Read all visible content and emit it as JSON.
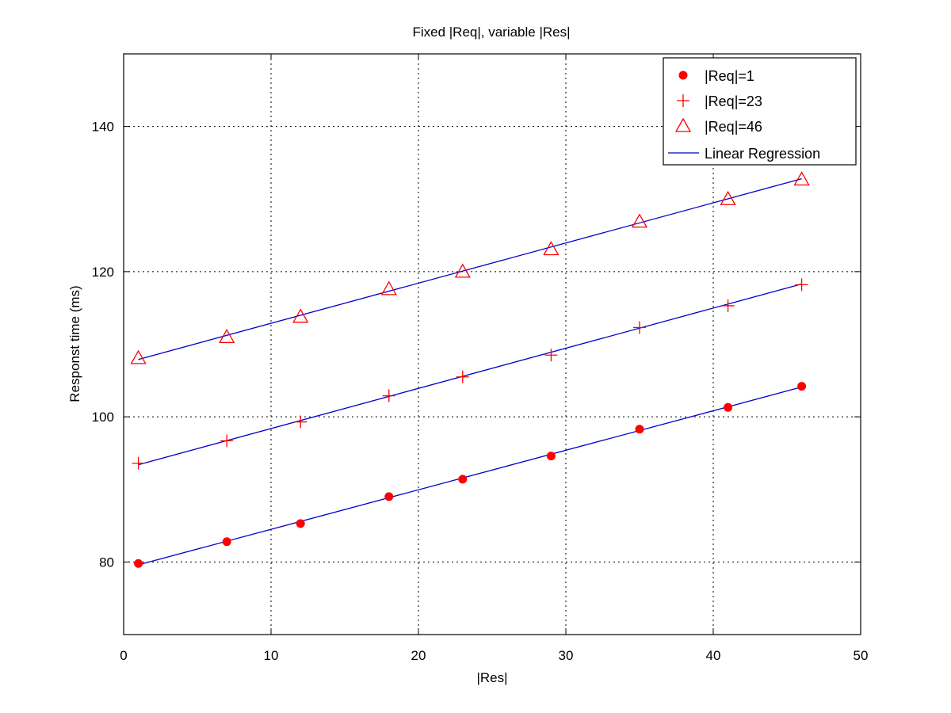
{
  "chart_data": {
    "type": "scatter",
    "title": "Fixed |Req|, variable |Res|",
    "xlabel": "|Res|",
    "ylabel": "Responst time (ms)",
    "xlim": [
      0,
      50
    ],
    "ylim": [
      70,
      150
    ],
    "xticks": [
      0,
      10,
      20,
      30,
      40,
      50
    ],
    "yticks": [
      80,
      100,
      120,
      140
    ],
    "grid": true,
    "legend_position": "top-right",
    "x": [
      1,
      7,
      12,
      18,
      23,
      29,
      35,
      41,
      46
    ],
    "series": [
      {
        "name": "|Req|=1",
        "marker": "filled-circle",
        "color": "#ff0000",
        "values": [
          79.8,
          82.8,
          85.3,
          89.0,
          91.4,
          94.6,
          98.3,
          101.3,
          104.2
        ]
      },
      {
        "name": "|Req|=23",
        "marker": "plus",
        "color": "#ff0000",
        "values": [
          93.6,
          96.7,
          99.3,
          102.9,
          105.5,
          108.5,
          112.3,
          115.3,
          118.2
        ]
      },
      {
        "name": "|Req|=46",
        "marker": "triangle",
        "color": "#ff0000",
        "values": [
          108.1,
          111.0,
          113.8,
          117.6,
          120.0,
          123.1,
          126.9,
          130.0,
          132.7
        ]
      }
    ],
    "regression": {
      "name": "Linear Regression",
      "color": "#0000cc",
      "lines": [
        {
          "x": [
            1,
            46
          ],
          "y": [
            79.6,
            104.1
          ]
        },
        {
          "x": [
            1,
            46
          ],
          "y": [
            93.4,
            118.3
          ]
        },
        {
          "x": [
            1,
            46
          ],
          "y": [
            107.9,
            132.8
          ]
        }
      ]
    }
  }
}
